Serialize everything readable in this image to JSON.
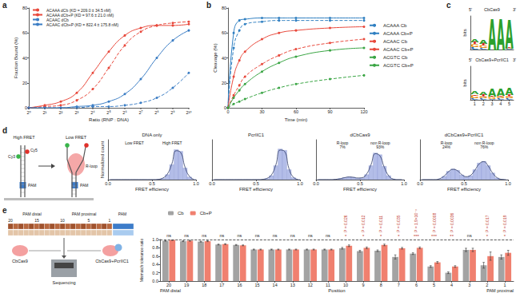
{
  "chart_data": [
    {
      "panel": "a",
      "type": "line",
      "xlabel": "Ratio (RNP : DNA)",
      "ylabel": "Fraction Bound (%)",
      "log": "x",
      "grid": false,
      "legend": "upper left",
      "marker": "circle",
      "x": [
        1,
        2,
        4,
        8,
        16,
        32,
        64,
        128,
        256,
        512,
        1024
      ],
      "xlim": [
        1,
        1024
      ],
      "xticks": [
        {
          "value": 1,
          "label": "2⁰"
        },
        {
          "value": 2,
          "label": "2¹"
        },
        {
          "value": 4,
          "label": "2²"
        },
        {
          "value": 8,
          "label": "2³"
        },
        {
          "value": 16,
          "label": "2⁴"
        },
        {
          "value": 32,
          "label": "2⁵"
        },
        {
          "value": 64,
          "label": "2⁶"
        },
        {
          "value": 128,
          "label": "2⁷"
        },
        {
          "value": 256,
          "label": "2⁸"
        },
        {
          "value": 512,
          "label": "2⁹"
        },
        {
          "value": 1024,
          "label": "2¹⁰"
        }
      ],
      "ylim": [
        0,
        80
      ],
      "yticks": [
        0,
        20,
        40,
        60,
        80
      ],
      "series": [
        {
          "name": "ACAAA dCb (KD = 209.0 ± 34.5 nM)",
          "color": "#e8483b",
          "line_style": "dashed",
          "values": [
            0,
            1,
            2,
            6,
            15,
            32,
            50,
            61,
            66,
            68,
            69
          ]
        },
        {
          "name": "ACAAA dCb+P (KD = 97.6 ± 21.0 nM)",
          "color": "#e8483b",
          "line_style": "solid",
          "values": [
            0,
            2,
            5,
            12,
            28,
            45,
            58,
            64,
            66,
            66,
            67
          ]
        },
        {
          "name": "ACAAC dCb",
          "color": "#3b7dc4",
          "line_style": "dashed",
          "values": [
            0,
            0,
            0,
            0,
            1,
            1,
            2,
            4,
            8,
            16,
            28
          ]
        },
        {
          "name": "ACAAC dCb+P (KD = 822.4 ± 175.8 nM)",
          "color": "#3b7dc4",
          "line_style": "solid",
          "values": [
            0,
            0,
            0,
            1,
            2,
            5,
            11,
            23,
            40,
            54,
            62
          ]
        }
      ]
    },
    {
      "panel": "b",
      "type": "line",
      "xlabel": "Time (min)",
      "ylabel": "Cleavage (%)",
      "grid": false,
      "legend": "right",
      "marker": "circle",
      "x": [
        0,
        5,
        10,
        15,
        30,
        45,
        60,
        90,
        120
      ],
      "xlim": [
        0,
        120
      ],
      "xticks": [
        0,
        30,
        60,
        90,
        120
      ],
      "ylim": [
        0,
        80
      ],
      "yticks": [
        0,
        20,
        40,
        60,
        80
      ],
      "series": [
        {
          "name": "ACAAA Cb",
          "color": "#2f7fc1",
          "line_style": "dashed",
          "values": [
            0,
            48,
            62,
            67,
            69,
            70,
            70,
            70,
            70
          ]
        },
        {
          "name": "ACAAA Cb+P",
          "color": "#2f7fc1",
          "line_style": "solid",
          "values": [
            0,
            60,
            70,
            71,
            72,
            72,
            72,
            72,
            72
          ]
        },
        {
          "name": "ACAAC Cb",
          "color": "#e8483b",
          "line_style": "dashed",
          "values": [
            0,
            10,
            18,
            25,
            35,
            42,
            47,
            52,
            55
          ]
        },
        {
          "name": "ACAAC Cb+P",
          "color": "#e8483b",
          "line_style": "solid",
          "values": [
            0,
            25,
            38,
            45,
            55,
            60,
            62,
            64,
            65
          ]
        },
        {
          "name": "ACGTC Cb",
          "color": "#3aa544",
          "line_style": "dashed",
          "values": [
            0,
            3,
            5,
            7,
            12,
            16,
            19,
            23,
            26
          ]
        },
        {
          "name": "ACGTC Cb+P",
          "color": "#3aa544",
          "line_style": "solid",
          "values": [
            0,
            8,
            14,
            19,
            29,
            36,
            41,
            46,
            48
          ]
        }
      ]
    },
    {
      "panel": "c",
      "type": "logo",
      "ylabel": "bits",
      "stacked": true,
      "annotations": [
        "5'",
        "3'"
      ],
      "categories": [
        "1",
        "2",
        "3",
        "4",
        "5"
      ],
      "ylim": [
        0,
        2
      ],
      "logos": [
        {
          "title": "CbCas9",
          "tick_labels": false,
          "series": [
            {
              "name": "C",
              "color": "#1f6fc0",
              "values": [
                0.15,
                0.1,
                0.02,
                0.02,
                0.05
              ]
            },
            {
              "name": "G",
              "color": "#f29b1d",
              "values": [
                0.2,
                0.15,
                0.02,
                0.02,
                0.05
              ]
            },
            {
              "name": "T",
              "color": "#d62728",
              "values": [
                0.1,
                0.1,
                0.02,
                0.02,
                0.05
              ]
            },
            {
              "name": "A",
              "color": "#2ca02c",
              "values": [
                0.2,
                0.25,
                1.85,
                1.85,
                1.7
              ]
            }
          ]
        },
        {
          "title": "CbCas9+PcrIIC1",
          "tick_labels": "x",
          "series": [
            {
              "name": "C",
              "color": "#1f6fc0",
              "values": [
                0.1,
                0.1,
                0.08,
                0.1,
                0.1
              ]
            },
            {
              "name": "G",
              "color": "#f29b1d",
              "values": [
                0.15,
                0.12,
                0.1,
                0.1,
                0.1
              ]
            },
            {
              "name": "T",
              "color": "#d62728",
              "values": [
                0.08,
                0.1,
                0.06,
                0.08,
                0.1
              ]
            },
            {
              "name": "A",
              "color": "#2ca02c",
              "values": [
                0.15,
                0.2,
                0.5,
                0.45,
                0.4
              ]
            }
          ]
        }
      ]
    },
    {
      "panel": "d",
      "type": "histogram",
      "xlabel": "FRET efficiency",
      "ylabel": "Normalized count",
      "grid": false,
      "tick_labels": "x",
      "color": "#b3bde8",
      "bins": [
        0,
        0.05,
        0.1,
        0.15,
        0.2,
        0.25,
        0.3,
        0.35,
        0.4,
        0.45,
        0.5,
        0.55,
        0.6,
        0.65,
        0.7,
        0.75,
        0.8,
        0.85,
        0.9,
        0.95,
        1
      ],
      "xlim": [
        0,
        1
      ],
      "xticks": [
        {
          "value": 0,
          "label": "0.0"
        },
        {
          "value": 0.5,
          "label": "0.5"
        },
        {
          "value": 1,
          "label": "1.0"
        }
      ],
      "ylim": [
        0,
        1.2
      ],
      "panels": [
        {
          "title": "DNA only",
          "annotations": [
            "Low FRET",
            "High FRET"
          ],
          "counts": [
            0,
            0,
            0,
            0,
            0,
            0,
            0,
            0,
            0,
            0,
            0,
            0.01,
            0.04,
            0.15,
            0.45,
            0.9,
            0.85,
            0.35,
            0.08,
            0.01
          ],
          "fit": [
            0,
            0,
            0,
            0,
            0,
            0,
            0,
            0,
            0,
            0,
            0,
            0.01,
            0.05,
            0.17,
            0.47,
            0.87,
            0.82,
            0.38,
            0.1,
            0.01
          ]
        },
        {
          "title": "PcrIIC1",
          "counts": [
            0,
            0,
            0,
            0,
            0,
            0,
            0,
            0,
            0,
            0,
            0,
            0,
            0.03,
            0.12,
            0.42,
            0.92,
            0.88,
            0.3,
            0.06,
            0.01
          ],
          "fit": [
            0,
            0,
            0,
            0,
            0,
            0,
            0,
            0,
            0,
            0,
            0,
            0.01,
            0.04,
            0.14,
            0.44,
            0.89,
            0.85,
            0.33,
            0.07,
            0.01
          ]
        },
        {
          "title": "dCbCas9",
          "annotations": [
            "R-loop\n7%",
            "non R-loop\n93%"
          ],
          "counts": [
            0,
            0,
            0,
            0,
            0.01,
            0.03,
            0.06,
            0.08,
            0.07,
            0.04,
            0.05,
            0.15,
            0.42,
            0.8,
            0.75,
            0.4,
            0.12,
            0.02,
            0,
            0
          ],
          "fit": [
            0,
            0,
            0,
            0,
            0.01,
            0.03,
            0.06,
            0.08,
            0.07,
            0.05,
            0.06,
            0.17,
            0.45,
            0.78,
            0.72,
            0.38,
            0.12,
            0.02,
            0,
            0
          ]
        },
        {
          "title": "dCbCas9+PcrIIC1",
          "annotations": [
            "R-loop\n24%",
            "non R-loop\n76%"
          ],
          "counts": [
            0,
            0,
            0,
            0,
            0.02,
            0.1,
            0.25,
            0.32,
            0.28,
            0.14,
            0.08,
            0.12,
            0.3,
            0.5,
            0.55,
            0.42,
            0.2,
            0.05,
            0.01,
            0
          ],
          "fit": [
            0,
            0,
            0,
            0,
            0.03,
            0.11,
            0.24,
            0.31,
            0.27,
            0.15,
            0.09,
            0.13,
            0.29,
            0.48,
            0.54,
            0.41,
            0.2,
            0.06,
            0.01,
            0
          ]
        }
      ],
      "schematic": {
        "states": [
          "High FRET",
          "Low FRET"
        ],
        "pam": "PAM",
        "donor": "Cy3",
        "acceptor": "Cy5",
        "rloop": "R-loop"
      }
    },
    {
      "panel": "e",
      "type": "bar",
      "xlabel": "Position",
      "ylabel": "Mismatch tolerance ratio",
      "grid": false,
      "legend": "upper left",
      "categories": [
        "20",
        "19",
        "18",
        "17",
        "16",
        "15",
        "14",
        "13",
        "12",
        "11",
        "10",
        "9",
        "8",
        "7",
        "6",
        "5",
        "4",
        "3",
        "2",
        "1"
      ],
      "x_group_labels": [
        "PAM distal",
        "PAM proximal"
      ],
      "ylim": [
        0,
        1
      ],
      "yticks": [
        {
          "value": 0,
          "label": "0.0"
        },
        {
          "value": 0.2,
          "label": "0.2"
        },
        {
          "value": 0.4,
          "label": "0.4"
        },
        {
          "value": 0.6,
          "label": "0.6"
        },
        {
          "value": 0.8,
          "label": "0.8"
        },
        {
          "value": 1,
          "label": "1.0"
        }
      ],
      "reference_line": 1,
      "series": [
        {
          "name": "Cb",
          "color": "#a3a3a3",
          "values": [
            0.97,
            0.96,
            0.95,
            0.88,
            0.87,
            0.76,
            0.76,
            0.76,
            0.76,
            0.76,
            0.79,
            0.72,
            0.73,
            0.58,
            0.66,
            0.35,
            0.2,
            0.75,
            0.38,
            0.58
          ],
          "errors": [
            0.01,
            0.01,
            0.01,
            0.01,
            0.01,
            0.01,
            0.01,
            0.01,
            0.01,
            0.01,
            0.02,
            0.02,
            0.02,
            0.05,
            0.02,
            0.02,
            0.02,
            0.04,
            0.07,
            0.05
          ]
        },
        {
          "name": "Cb+P",
          "color": "#f0806f",
          "values": [
            0.99,
            0.97,
            0.96,
            0.89,
            0.86,
            0.76,
            0.76,
            0.76,
            0.76,
            0.76,
            0.85,
            0.8,
            0.87,
            0.79,
            0.8,
            0.45,
            0.35,
            0.75,
            0.6,
            0.68
          ],
          "errors": [
            0.01,
            0.01,
            0.01,
            0.01,
            0.01,
            0.01,
            0.01,
            0.01,
            0.01,
            0.01,
            0.02,
            0.02,
            0.02,
            0.02,
            0.02,
            0.02,
            0.02,
            0.04,
            0.1,
            0.06
          ]
        }
      ],
      "significance": [
        {
          "label": "ns"
        },
        {
          "label": "ns"
        },
        {
          "label": "ns"
        },
        {
          "label": "ns"
        },
        {
          "label": "ns"
        },
        {
          "label": "ns"
        },
        {
          "label": "ns"
        },
        {
          "label": "ns"
        },
        {
          "label": "ns"
        },
        {
          "label": "ns"
        },
        {
          "label": "P = 0.026",
          "stars": "*"
        },
        {
          "label": "P = 0.012",
          "stars": "*"
        },
        {
          "label": "P = 0.011",
          "stars": "*"
        },
        {
          "label": "P = 0.035",
          "stars": "*"
        },
        {
          "label": "P = 1.9×10⁻⁵",
          "stars": "***"
        },
        {
          "label": "P = 0.0008",
          "stars": "***"
        },
        {
          "label": "P = 0.0036",
          "stars": "**"
        },
        {
          "label": "ns"
        },
        {
          "label": "P = 0.017",
          "stars": "*"
        },
        {
          "label": "P = 0.019",
          "stars": "*"
        }
      ],
      "schematic": {
        "regions": [
          "PAM distal",
          "PAM proximal",
          "PAM"
        ],
        "positions": [
          "20",
          "15",
          "10",
          "5",
          "1"
        ],
        "proteins": [
          "CbCas9",
          "CbCas9+PcrIIC1"
        ],
        "readout": "Sequencing"
      }
    }
  ]
}
